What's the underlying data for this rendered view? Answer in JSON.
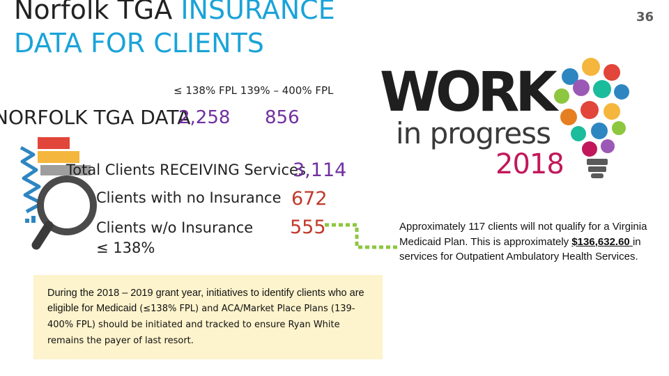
{
  "slide": {
    "title_line1_black": "Norfolk TGA",
    "title_line1_blue": "INSURANCE",
    "title_line2": "DATA FOR CLIENTS",
    "page_number": "36"
  },
  "table": {
    "header": "≤ 138% FPL 139% – 400% FPL",
    "row_label": "NORFOLK TGA DATA",
    "value_138": "2,258",
    "value_139_400": "856"
  },
  "stats": [
    {
      "label": "Total Clients RECEIVING Services",
      "value": "3,114"
    },
    {
      "label": "Clients with no Insurance",
      "value": "672"
    },
    {
      "label_line1": "Clients w/o Insurance",
      "label_line2": "≤ 138%",
      "value": "555"
    }
  ],
  "note": {
    "part1": "During the 2018 – 2019 grant year, initiatives to identify clients who are eligible for Medicaid",
    "part2": "(≤138% FPL) and ACA/Market Place Plans (139-400% FPL) should be initiated and tracked to ensure Ryan White remains the payer of last resort."
  },
  "side_note": {
    "before": "Approximately 117 clients will not qualify for a Virginia Medicaid Plan. This is approximately ",
    "amount": "$136,632.60 ",
    "after": "in services for Outpatient Ambulatory Health Services."
  },
  "logo": {
    "word1": "WORK",
    "word2": "in progress",
    "year": "2018"
  },
  "colors": {
    "title_blue": "#1aa3d8",
    "purple": "#7030a0",
    "red": "#c0392b",
    "note_bg": "#fdf3cc",
    "connector_green": "#8dc63f",
    "logo_magenta": "#c2185b"
  }
}
